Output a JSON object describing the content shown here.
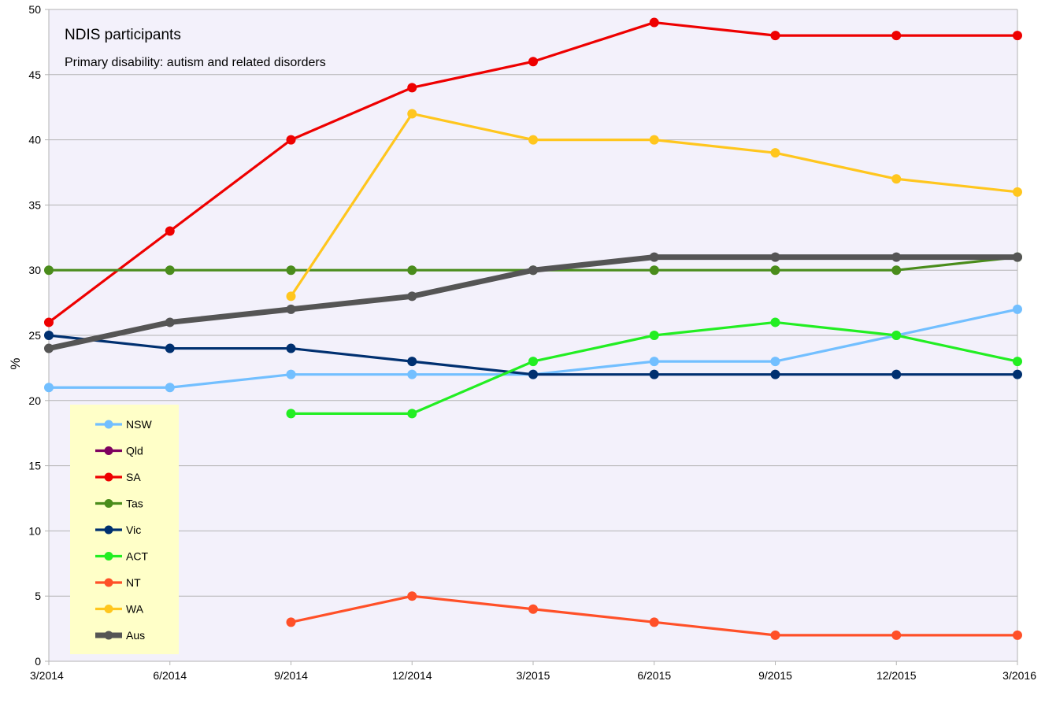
{
  "chart_data": {
    "type": "line",
    "title": "NDIS participants",
    "subtitle": "Primary disability: autism and related disorders",
    "xlabel": "",
    "ylabel": "%",
    "ylim": [
      0,
      50
    ],
    "yticks": [
      0,
      5,
      10,
      15,
      20,
      25,
      30,
      35,
      40,
      45,
      50
    ],
    "grid": true,
    "legend_position": "bottom-left",
    "categories": [
      "3/2014",
      "6/2014",
      "9/2014",
      "12/2014",
      "3/2015",
      "6/2015",
      "9/2015",
      "12/2015",
      "3/2016"
    ],
    "series": [
      {
        "name": "NSW",
        "color": "#72bfff",
        "values": [
          21,
          21,
          22,
          22,
          22,
          23,
          23,
          25,
          27
        ]
      },
      {
        "name": "Qld",
        "color": "#7e0060",
        "values": [
          null,
          null,
          null,
          null,
          null,
          null,
          null,
          null,
          null
        ]
      },
      {
        "name": "SA",
        "color": "#ee0000",
        "values": [
          26,
          33,
          40,
          44,
          46,
          49,
          48,
          48,
          48
        ]
      },
      {
        "name": "Tas",
        "color": "#4a8c1c",
        "values": [
          30,
          30,
          30,
          30,
          30,
          30,
          30,
          30,
          31
        ]
      },
      {
        "name": "Vic",
        "color": "#003070",
        "values": [
          25,
          24,
          24,
          23,
          22,
          22,
          22,
          22,
          22
        ]
      },
      {
        "name": "ACT",
        "color": "#22ee22",
        "values": [
          null,
          null,
          19,
          19,
          23,
          25,
          26,
          25,
          23
        ]
      },
      {
        "name": "NT",
        "color": "#ff5028",
        "values": [
          null,
          null,
          3,
          5,
          4,
          3,
          2,
          2,
          2
        ]
      },
      {
        "name": "WA",
        "color": "#ffc61e",
        "values": [
          null,
          null,
          28,
          42,
          40,
          40,
          39,
          37,
          36
        ]
      },
      {
        "name": "Aus",
        "color": "#555555",
        "thick": true,
        "values": [
          24,
          26,
          27,
          28,
          30,
          31,
          31,
          31,
          31
        ]
      }
    ],
    "plot_background": "#f3f1fb",
    "legend_background": "#ffffc8"
  }
}
